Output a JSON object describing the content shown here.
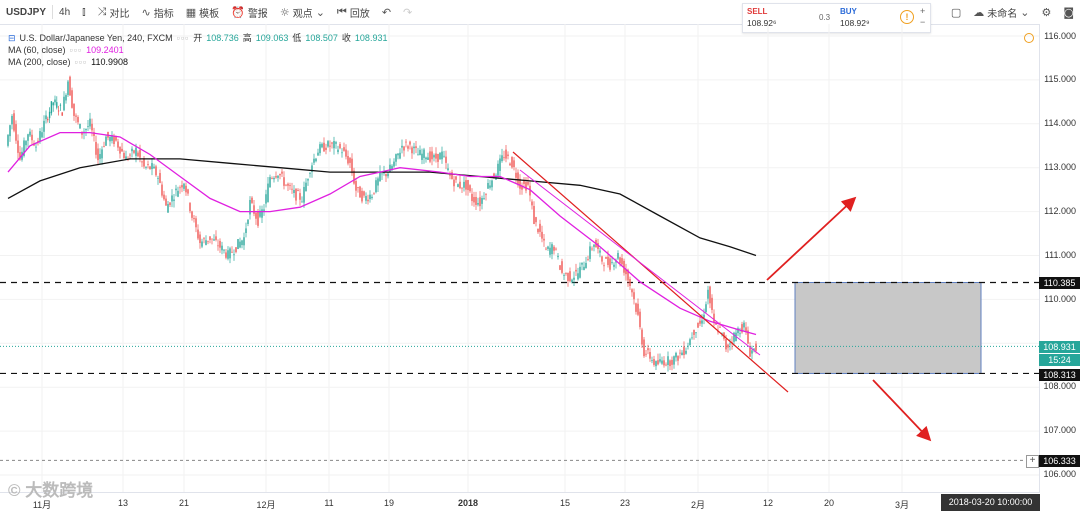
{
  "toolbar": {
    "symbol": "USDJPY",
    "interval": "4h",
    "compare": "对比",
    "indicators": "指标",
    "templates": "模板",
    "alerts": "警报",
    "ideas": "观点",
    "replay": "回放",
    "unnamed": "未命名"
  },
  "trade": {
    "sell_label": "SELL",
    "sell_price": "108.92⁶",
    "spread": "0.3",
    "buy_label": "BUY",
    "buy_price": "108.92⁹",
    "info_icon": "!"
  },
  "legend": {
    "title": "U.S. Dollar/Japanese Yen, 240, FXCM",
    "open_label": "开",
    "open": "108.736",
    "high_label": "高",
    "high": "109.063",
    "low_label": "低",
    "low": "108.507",
    "close_label": "收",
    "close": "108.931",
    "ma60_label": "MA (60, close)",
    "ma60_value": "109.2401",
    "ma200_label": "MA (200, close)",
    "ma200_value": "110.9908"
  },
  "price_axis": {
    "labels": [
      "116.000",
      "115.000",
      "114.000",
      "113.000",
      "112.000",
      "111.000",
      "110.000",
      "108.000",
      "107.000",
      "106.000"
    ],
    "level_upper": "110.385",
    "level_lower": "108.313",
    "level_bottom": "106.333",
    "current_price": "108.931",
    "countdown": "15:24"
  },
  "time_axis": {
    "labels": [
      "11月",
      "13",
      "21",
      "12月",
      "11",
      "19",
      "2018",
      "15",
      "23",
      "2月",
      "12",
      "20",
      "3月"
    ],
    "crosshair_time": "2018-03-20 10:00:00"
  },
  "watermark": "© 大数跨境",
  "colors": {
    "up_candle": "#26a69a",
    "down_candle": "#ef5350",
    "ma60": "#e020e0",
    "ma200": "#111111",
    "trendline": "#e02020",
    "zone": "#c8c8c8"
  },
  "chart_data": {
    "type": "candlestick",
    "symbol": "USDJPY",
    "ylim": [
      105.7,
      116.2
    ],
    "ma60_last": 109.2401,
    "ma200_last": 110.9908,
    "horizontal_levels": [
      110.385,
      108.313,
      106.333
    ],
    "current_price": 108.931
  }
}
